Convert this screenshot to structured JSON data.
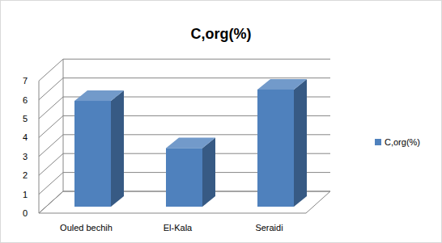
{
  "chart_data": {
    "type": "bar",
    "title": "C,org(%)",
    "categories": [
      "Ouled bechih",
      "El-Kala",
      "Seraidi"
    ],
    "series": [
      {
        "name": "C,org(%)",
        "color": "#4f81bd",
        "values": [
          5.6,
          3.1,
          6.2
        ]
      }
    ],
    "ylim": [
      0,
      7
    ],
    "yticks": [
      0,
      1,
      2,
      3,
      4,
      5,
      6,
      7
    ],
    "grid": true,
    "legend": "right"
  }
}
